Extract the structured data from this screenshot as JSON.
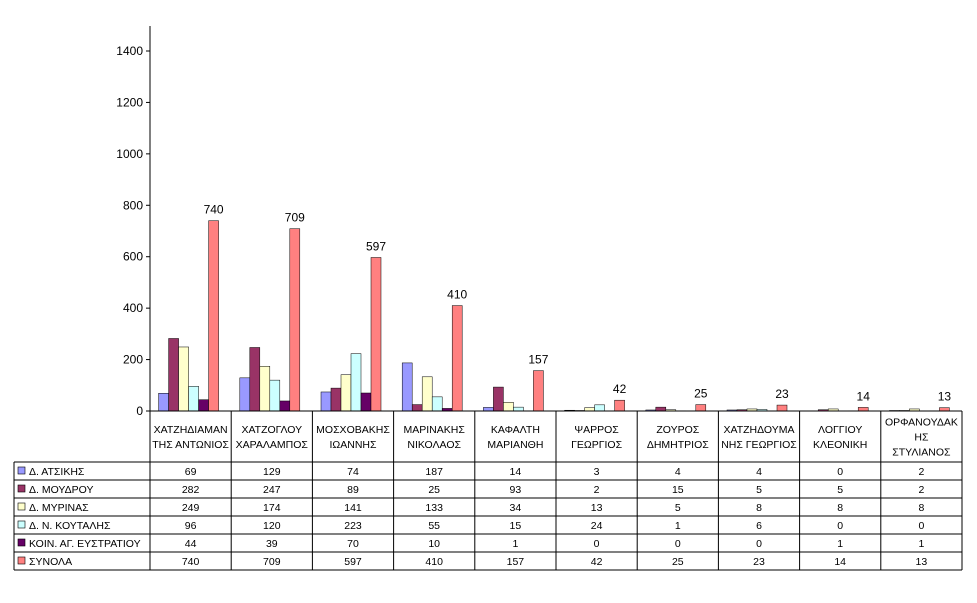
{
  "chart_data": {
    "type": "bar",
    "ylim": [
      0,
      1400
    ],
    "yticks": [
      0,
      200,
      400,
      600,
      800,
      1000,
      1200,
      1400
    ],
    "categories": [
      [
        "ΧΑΤΖΗΔΙΑΜΑΝ",
        "ΤΗΣ ΑΝΤΩΝΙΟΣ"
      ],
      [
        "ΧΑΤΖΟΓΛΟΥ",
        "ΧΑΡΑΛΑΜΠΟΣ"
      ],
      [
        "ΜΟΣΧΟΒΑΚΗΣ",
        "ΙΩΑΝΝΗΣ"
      ],
      [
        "ΜΑΡΙΝΑΚΗΣ",
        "ΝΙΚΟΛΑΟΣ"
      ],
      [
        "ΚΑΦΑΛΤΗ",
        "ΜΑΡΙΑΝΘΗ"
      ],
      [
        "ΨΑΡΡΟΣ",
        "ΓΕΩΡΓΙΟΣ"
      ],
      [
        "ΖΟΥΡΟΣ",
        "ΔΗΜΗΤΡΙΟΣ"
      ],
      [
        "ΧΑΤΖΗΔΟΥΜΑ",
        "ΝΗΣ ΓΕΩΡΓΙΟΣ"
      ],
      [
        "ΛΟΓΓΙΟΥ",
        "ΚΛΕΟΝΙΚΗ"
      ],
      [
        "ΟΡΦΑΝΟΥΔΑΚ",
        "ΗΣ",
        "ΣΤΥΛΙΑΝΟΣ"
      ]
    ],
    "series": [
      {
        "name": "Δ. ΑΤΣΙΚΗΣ",
        "color": "#9999ff",
        "values": [
          69,
          129,
          74,
          187,
          14,
          3,
          4,
          4,
          0,
          2
        ]
      },
      {
        "name": "Δ. ΜΟΥΔΡΟΥ",
        "color": "#993366",
        "values": [
          282,
          247,
          89,
          25,
          93,
          2,
          15,
          5,
          5,
          2
        ]
      },
      {
        "name": "Δ. ΜΥΡΙΝΑΣ",
        "color": "#ffffcc",
        "values": [
          249,
          174,
          141,
          133,
          34,
          13,
          5,
          8,
          8,
          8
        ]
      },
      {
        "name": "Δ. Ν. ΚΟΥΤΑΛΗΣ",
        "color": "#ccffff",
        "values": [
          96,
          120,
          223,
          55,
          15,
          24,
          1,
          6,
          0,
          0
        ]
      },
      {
        "name": "ΚΟΙΝ. ΑΓ. ΕΥΣΤΡΑΤΙΟΥ",
        "color": "#660066",
        "values": [
          44,
          39,
          70,
          10,
          1,
          0,
          0,
          0,
          1,
          1
        ]
      },
      {
        "name": "ΣΥΝΟΛΑ",
        "color": "#ff8080",
        "values": [
          740,
          709,
          597,
          410,
          157,
          42,
          25,
          23,
          14,
          13
        ]
      }
    ],
    "data_labels_series": "ΣΥΝΟΛΑ",
    "grid": false,
    "legend": "data-table"
  }
}
